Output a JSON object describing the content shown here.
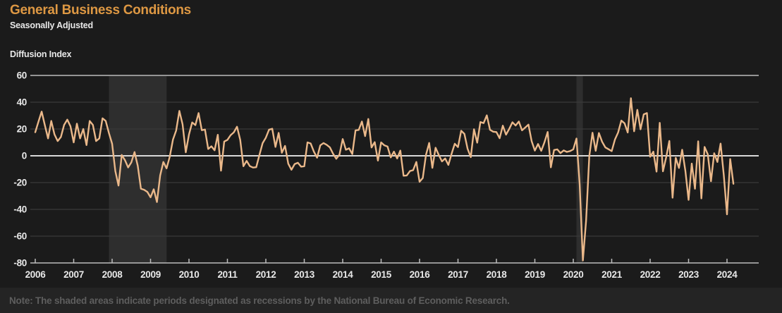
{
  "header": {
    "title": "General Business Conditions",
    "subtitle": "Seasonally Adjusted",
    "axis_unit_label": "Diffusion Index"
  },
  "footer": {
    "note": "Note: The shaded areas indicate periods designated as recessions by the National Bureau of Economic Research."
  },
  "colors": {
    "background": "#1B1B1B",
    "footer_background": "#242424",
    "title_text": "#DE9843",
    "series_line": "#EAB88A",
    "recession_band": "#2E2E2E",
    "gridline": "#3A3A3A",
    "top_border_line": "#959595",
    "zero_line": "#D8D8D8",
    "axis_line": "#BDBDBD",
    "axis_label_text": "#E8E8E8",
    "note_text": "#5E5E5E"
  },
  "chart_data": {
    "type": "line",
    "title": "General Business Conditions",
    "subtitle": "Seasonally Adjusted",
    "ylabel": "Diffusion Index",
    "xlabel": "",
    "ylim": [
      -80,
      60
    ],
    "yticks": [
      60,
      40,
      20,
      0,
      -20,
      -40,
      -60,
      -80
    ],
    "xticks_years": [
      2006,
      2007,
      2008,
      2009,
      2010,
      2011,
      2012,
      2013,
      2014,
      2015,
      2016,
      2017,
      2018,
      2019,
      2020,
      2021,
      2022,
      2023,
      2024
    ],
    "grid": "horizontal",
    "legend_position": "none",
    "frequency": "monthly",
    "start": "2006-01",
    "end": "2024-03",
    "recessions": [
      {
        "start": "2007-12",
        "end": "2009-06"
      },
      {
        "start": "2020-02",
        "end": "2020-04"
      }
    ],
    "series": [
      {
        "name": "General Business Conditions (Diffusion Index, Seasonally Adjusted)",
        "values": [
          17.6,
          25.5,
          33.0,
          22.8,
          13.0,
          26.0,
          16.0,
          11.0,
          14.0,
          23.0,
          27.0,
          22.0,
          10.0,
          24.0,
          13.0,
          20.0,
          8.0,
          26.0,
          23.0,
          11.0,
          13.0,
          28.0,
          26.0,
          17.0,
          9.0,
          -11.4,
          -22.2,
          0.6,
          -3.2,
          -8.7,
          -4.9,
          2.8,
          -7.4,
          -24.6,
          -25.4,
          -27.0,
          -31.0,
          -25.0,
          -34.5,
          -14.7,
          -4.6,
          -9.4,
          -0.6,
          12.1,
          18.9,
          33.5,
          23.5,
          2.6,
          15.9,
          24.9,
          22.9,
          31.9,
          19.1,
          19.6,
          5.1,
          7.1,
          4.1,
          15.7,
          -11.1,
          10.6,
          11.9,
          15.4,
          17.5,
          21.7,
          11.9,
          -7.8,
          -3.8,
          -7.7,
          -8.8,
          -8.5,
          0.6,
          9.5,
          13.5,
          19.5,
          20.2,
          6.6,
          17.1,
          2.3,
          7.4,
          -5.9,
          -10.4,
          -6.2,
          -5.2,
          -8.1,
          -7.8,
          10.0,
          9.2,
          3.1,
          -1.4,
          7.8,
          9.5,
          8.2,
          6.3,
          1.5,
          -2.2,
          0.9,
          12.5,
          4.5,
          5.6,
          1.3,
          19.0,
          19.3,
          25.6,
          14.7,
          27.5,
          6.2,
          10.2,
          -3.6,
          10.0,
          7.8,
          6.9,
          -1.2,
          3.1,
          -2.0,
          3.9,
          -14.9,
          -14.7,
          -11.4,
          -10.7,
          -4.6,
          -19.4,
          -16.6,
          0.6,
          9.6,
          -9.0,
          6.0,
          0.6,
          -4.2,
          -2.0,
          -6.8,
          1.5,
          9.0,
          6.5,
          18.7,
          16.4,
          5.2,
          -1.0,
          19.8,
          9.8,
          25.2,
          24.4,
          30.2,
          19.4,
          18.0,
          17.7,
          13.1,
          22.5,
          15.8,
          20.1,
          25.0,
          22.6,
          25.6,
          19.0,
          21.1,
          23.3,
          10.9,
          3.9,
          8.8,
          3.7,
          10.1,
          17.8,
          -8.6,
          4.3,
          4.8,
          2.0,
          4.0,
          2.9,
          3.5,
          4.8,
          12.9,
          -21.5,
          -78.2,
          -48.5,
          -0.2,
          17.2,
          3.7,
          17.0,
          10.5,
          6.3,
          4.9,
          3.5,
          12.1,
          17.4,
          26.3,
          24.3,
          17.4,
          43.0,
          18.3,
          34.3,
          19.8,
          30.9,
          31.9,
          -0.7,
          3.1,
          -11.8,
          24.6,
          -11.6,
          -1.2,
          11.1,
          -31.3,
          -1.5,
          -9.1,
          4.5,
          -11.2,
          -32.9,
          -5.8,
          -24.6,
          10.8,
          -31.8,
          6.6,
          1.1,
          -19.0,
          1.9,
          -4.6,
          9.1,
          -14.5,
          -43.7,
          -2.4,
          -20.9
        ]
      }
    ]
  }
}
